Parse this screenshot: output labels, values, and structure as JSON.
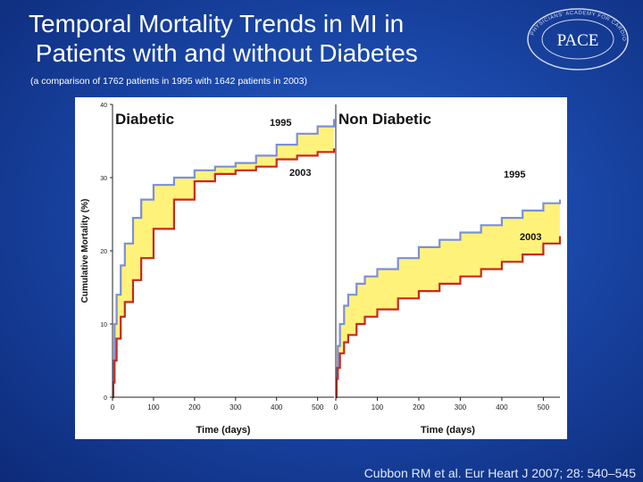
{
  "slide": {
    "title": "Temporal Mortality Trends in MI in\n Patients with and without Diabetes",
    "subtitle": "(a comparison of 1762 patients in 1995 with 1642 patients in 2003)",
    "citation": "Cubbon RM et al. Eur Heart  J 2007; 28: 540–545"
  },
  "logo": {
    "text": "PACE",
    "ring_text": "PHYSICIANS' ACADEMY FOR CARDIOVASCULAR EDUCATION"
  },
  "colors": {
    "line_1995": "#7c8fd6",
    "line_2003": "#c8281e",
    "band_fill": "#fff27a",
    "band_fill_between": "#f4e060",
    "axis": "#222222"
  },
  "chart_data": [
    {
      "type": "line",
      "title": "Diabetic",
      "xlabel": "Time (days)",
      "ylabel": "Cumulative Mortality (%)",
      "xlim": [
        0,
        540
      ],
      "ylim": [
        0,
        40
      ],
      "xticks": [
        "0",
        "100",
        "200",
        "300",
        "400",
        "500"
      ],
      "yticks": [
        "0",
        "10",
        "20",
        "30",
        "40"
      ],
      "annotations": [
        "1995",
        "2003"
      ],
      "series": [
        {
          "name": "1995",
          "x": [
            0,
            2,
            5,
            10,
            20,
            30,
            50,
            70,
            100,
            150,
            200,
            250,
            300,
            350,
            400,
            450,
            500,
            540
          ],
          "y": [
            0,
            5,
            10,
            14,
            18,
            21,
            24.5,
            27,
            29,
            30,
            31,
            31.5,
            32,
            33,
            34.5,
            36,
            37,
            38
          ]
        },
        {
          "name": "2003",
          "x": [
            0,
            2,
            5,
            10,
            20,
            30,
            50,
            70,
            100,
            150,
            200,
            250,
            300,
            350,
            400,
            450,
            500,
            540
          ],
          "y": [
            0,
            2,
            5,
            8,
            11,
            13,
            16,
            19,
            23,
            27,
            29.5,
            30.5,
            31,
            31.5,
            32.5,
            33,
            33.5,
            34
          ]
        }
      ]
    },
    {
      "type": "line",
      "title": "Non Diabetic",
      "xlabel": "Time (days)",
      "ylabel": "",
      "xlim": [
        0,
        540
      ],
      "ylim": [
        0,
        40
      ],
      "xticks": [
        "0",
        "100",
        "200",
        "300",
        "400",
        "500"
      ],
      "yticks": [],
      "annotations": [
        "1995",
        "2003"
      ],
      "series": [
        {
          "name": "1995",
          "x": [
            0,
            2,
            5,
            10,
            20,
            30,
            50,
            70,
            100,
            150,
            200,
            250,
            300,
            350,
            400,
            450,
            500,
            540
          ],
          "y": [
            0,
            4,
            7,
            10,
            12.5,
            14,
            15.5,
            16.5,
            17.5,
            19,
            20.5,
            21.5,
            22.5,
            23.5,
            24.5,
            25.5,
            26.5,
            27
          ]
        },
        {
          "name": "2003",
          "x": [
            0,
            2,
            5,
            10,
            20,
            30,
            50,
            70,
            100,
            150,
            200,
            250,
            300,
            350,
            400,
            450,
            500,
            540
          ],
          "y": [
            0,
            2.5,
            4,
            6,
            7.5,
            8.5,
            10,
            11,
            12,
            13.5,
            14.5,
            15.5,
            16.5,
            17.5,
            18.5,
            19.5,
            21,
            22
          ]
        }
      ]
    }
  ]
}
